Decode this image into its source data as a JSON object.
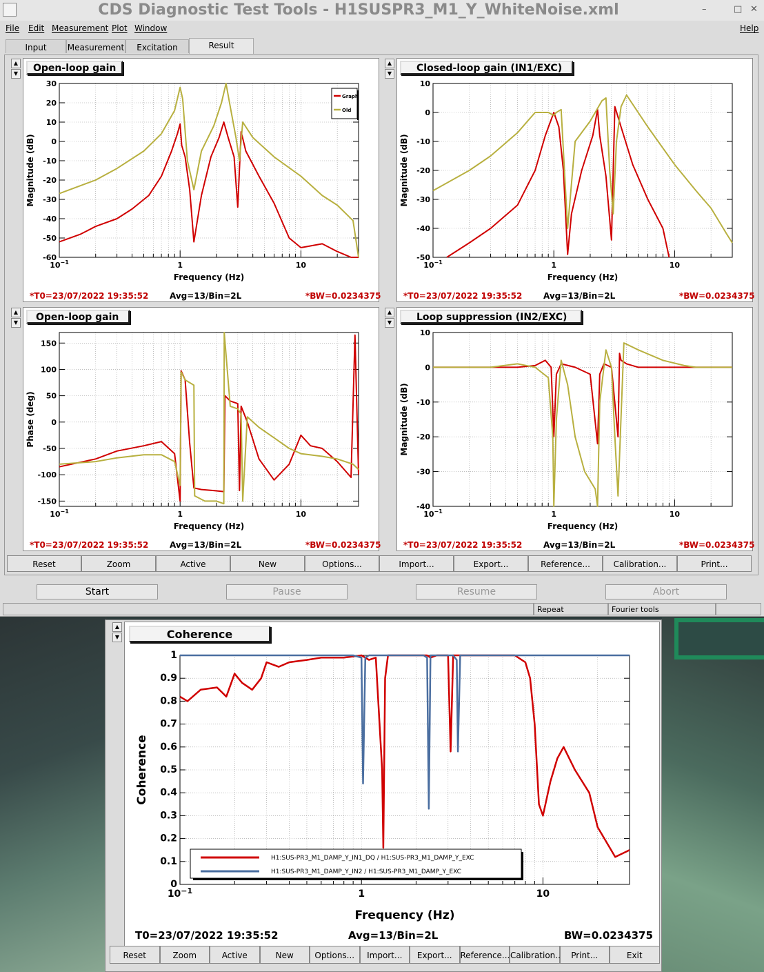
{
  "window": {
    "title": "CDS Diagnostic Test Tools - H1SUSPR3_M1_Y_WhiteNoise.xml",
    "controls": [
      "–",
      "□",
      "✕"
    ]
  },
  "menubar": [
    "File",
    "Edit",
    "Measurement",
    "Plot",
    "Window",
    "Help"
  ],
  "tabs": [
    "Input",
    "Measurement",
    "Excitation",
    "Result"
  ],
  "plot_buttons": [
    "Reset",
    "Zoom",
    "Active",
    "New",
    "Options...",
    "Import...",
    "Export...",
    "Reference...",
    "Calibration...",
    "Print..."
  ],
  "run_controls": {
    "start": "Start",
    "pause": "Pause",
    "resume": "Resume",
    "abort": "Abort"
  },
  "status": {
    "repeat": "Repeat",
    "fourier": "Fourier tools"
  },
  "panel_info": {
    "t0": "*T0=23/07/2022 19:35:52",
    "avg": "Avg=13/Bin=2L",
    "bw": "*BW=0.0234375"
  },
  "panels": [
    {
      "title": "Open-loop gain",
      "xlabel": "Frequency (Hz)",
      "ylabel": "Magnitude (dB)"
    },
    {
      "title": "Closed-loop gain (IN1/EXC)",
      "xlabel": "Frequency (Hz)",
      "ylabel": "Magnitude (dB)"
    },
    {
      "title": "Open-loop gain",
      "xlabel": "Frequency (Hz)",
      "ylabel": "Phase (deg)"
    },
    {
      "title": "Loop suppression (IN2/EXC)",
      "xlabel": "Frequency (Hz)",
      "ylabel": "Magnitude (dB)"
    }
  ],
  "legend_small": [
    "Graph",
    "Old"
  ],
  "coherence": {
    "title": "Coherence",
    "xlabel": "Frequency (Hz)",
    "ylabel": "Coherence",
    "t0": "T0=23/07/2022 19:35:52",
    "avg": "Avg=13/Bin=2L",
    "bw": "BW=0.0234375",
    "legend": [
      "H1:SUS-PR3_M1_DAMP_Y_IN1_DQ / H1:SUS-PR3_M1_DAMP_Y_EXC",
      "H1:SUS-PR3_M1_DAMP_Y_IN2 / H1:SUS-PR3_M1_DAMP_Y_EXC"
    ],
    "buttons": [
      "Reset",
      "Zoom",
      "Active",
      "New",
      "Options...",
      "Import...",
      "Export...",
      "Reference...",
      "Calibration...",
      "Print...",
      "Exit"
    ]
  },
  "colors": {
    "graph": "#d00000",
    "old": "#b8b040",
    "blue": "#4a6ea0"
  },
  "chart_data": [
    {
      "type": "line",
      "xscale": "log",
      "xlim": [
        0.1,
        30
      ],
      "ylim": [
        -60,
        30
      ],
      "yticks": [
        -60,
        -50,
        -40,
        -30,
        -20,
        -10,
        0,
        10,
        20,
        30
      ],
      "series": [
        {
          "name": "Graph",
          "x": [
            0.1,
            0.15,
            0.2,
            0.3,
            0.4,
            0.55,
            0.7,
            0.85,
            0.95,
            1.0,
            1.03,
            1.1,
            1.2,
            1.3,
            1.5,
            1.8,
            2.1,
            2.3,
            2.5,
            2.8,
            3.0,
            3.2,
            3.5,
            4.5,
            6,
            8,
            10,
            15,
            20,
            26,
            30
          ],
          "y": [
            -52,
            -48,
            -44,
            -40,
            -35,
            -28,
            -18,
            -5,
            4,
            9,
            -2,
            -8,
            -25,
            -52,
            -28,
            -8,
            2,
            10,
            2,
            -8,
            -34,
            5,
            -5,
            -18,
            -32,
            -50,
            -55,
            -53,
            -57,
            -60,
            -60
          ]
        },
        {
          "name": "Old",
          "x": [
            0.1,
            0.2,
            0.3,
            0.5,
            0.7,
            0.9,
            1.0,
            1.05,
            1.15,
            1.3,
            1.5,
            1.9,
            2.2,
            2.4,
            2.6,
            2.9,
            3.1,
            3.3,
            4,
            6,
            10,
            15,
            20,
            27,
            30
          ],
          "y": [
            -27,
            -20,
            -14,
            -5,
            4,
            16,
            28,
            22,
            -10,
            -25,
            -5,
            8,
            20,
            31,
            18,
            2,
            -10,
            10,
            2,
            -8,
            -18,
            -28,
            -33,
            -41,
            -60
          ]
        }
      ]
    },
    {
      "type": "line",
      "xscale": "log",
      "xlim": [
        0.1,
        30
      ],
      "ylim": [
        -50,
        10
      ],
      "yticks": [
        -50,
        -40,
        -30,
        -20,
        -10,
        0,
        10
      ],
      "series": [
        {
          "name": "Graph",
          "x": [
            0.13,
            0.2,
            0.3,
            0.5,
            0.7,
            0.85,
            1.0,
            1.1,
            1.2,
            1.3,
            1.4,
            1.7,
            2.1,
            2.3,
            2.4,
            2.7,
            3.0,
            3.2,
            3.6,
            4.5,
            6,
            8,
            9
          ],
          "y": [
            -50,
            -45,
            -40,
            -32,
            -20,
            -8,
            0,
            -5,
            -20,
            -49,
            -35,
            -20,
            -8,
            1,
            -8,
            -22,
            -44,
            2,
            -5,
            -18,
            -30,
            -40,
            -50
          ]
        },
        {
          "name": "Old",
          "x": [
            0.1,
            0.2,
            0.3,
            0.5,
            0.7,
            0.9,
            1.0,
            1.05,
            1.15,
            1.3,
            1.5,
            2.0,
            2.5,
            2.7,
            2.9,
            3.1,
            3.3,
            3.6,
            4,
            6,
            10,
            15,
            20,
            27,
            30
          ],
          "y": [
            -27,
            -20,
            -15,
            -7,
            0,
            0,
            -1,
            0,
            1,
            -40,
            -10,
            -3,
            4,
            5,
            -20,
            -35,
            -10,
            2,
            6,
            -5,
            -18,
            -27,
            -33,
            -42,
            -45
          ]
        }
      ]
    },
    {
      "type": "line",
      "xscale": "log",
      "xlim": [
        0.1,
        30
      ],
      "ylim": [
        -160,
        170
      ],
      "yticks": [
        -150,
        -100,
        -50,
        0,
        50,
        100,
        150
      ],
      "series": [
        {
          "name": "Graph",
          "x": [
            0.1,
            0.2,
            0.3,
            0.5,
            0.7,
            0.9,
            1.0,
            1.02,
            1.1,
            1.2,
            1.3,
            1.5,
            1.9,
            2.3,
            2.35,
            2.6,
            3.0,
            3.1,
            3.2,
            3.6,
            4.5,
            6,
            8,
            10,
            12,
            15,
            20,
            26,
            28,
            30
          ],
          "y": [
            -85,
            -70,
            -55,
            -45,
            -37,
            -60,
            -150,
            97,
            80,
            -40,
            -125,
            -128,
            -130,
            -132,
            50,
            40,
            35,
            -130,
            30,
            0,
            -70,
            -110,
            -80,
            -25,
            -45,
            -50,
            -75,
            -105,
            165,
            -100
          ]
        },
        {
          "name": "Old",
          "x": [
            0.1,
            0.2,
            0.3,
            0.5,
            0.7,
            0.9,
            1.0,
            1.02,
            1.1,
            1.3,
            1.32,
            1.6,
            2.0,
            2.3,
            2.32,
            2.6,
            3.0,
            3.2,
            3.3,
            3.6,
            4.5,
            6,
            8,
            10,
            15,
            20,
            27,
            30
          ],
          "y": [
            -80,
            -75,
            -68,
            -62,
            -62,
            -75,
            -120,
            95,
            80,
            70,
            -140,
            -150,
            -150,
            -155,
            170,
            30,
            25,
            15,
            -150,
            10,
            -10,
            -30,
            -50,
            -60,
            -65,
            -70,
            -80,
            -90
          ]
        }
      ]
    },
    {
      "type": "line",
      "xscale": "log",
      "xlim": [
        0.1,
        30
      ],
      "ylim": [
        -40,
        10
      ],
      "yticks": [
        -40,
        -30,
        -20,
        -10,
        0,
        10
      ],
      "series": [
        {
          "name": "Graph",
          "x": [
            0.1,
            0.3,
            0.5,
            0.7,
            0.85,
            0.95,
            1.0,
            1.05,
            1.15,
            1.5,
            2.0,
            2.3,
            2.4,
            2.6,
            3.0,
            3.4,
            3.5,
            3.6,
            4,
            5,
            8,
            15,
            30
          ],
          "y": [
            0,
            0,
            0,
            0.5,
            2,
            0,
            -20,
            -2,
            1,
            0,
            -2,
            -22,
            -2,
            1,
            0,
            -20,
            4,
            2,
            1,
            0,
            0,
            0,
            0
          ]
        },
        {
          "name": "Old",
          "x": [
            0.1,
            0.3,
            0.5,
            0.7,
            0.9,
            0.98,
            1.0,
            1.05,
            1.15,
            1.3,
            1.5,
            1.8,
            2.2,
            2.3,
            2.4,
            2.7,
            3.0,
            3.2,
            3.4,
            3.8,
            5,
            8,
            12,
            15,
            30
          ],
          "y": [
            0,
            0,
            1,
            0,
            -3,
            -20,
            -40,
            -15,
            2,
            -5,
            -20,
            -30,
            -35,
            -40,
            -10,
            5,
            0,
            -20,
            -37,
            7,
            5,
            2,
            0.5,
            0,
            0
          ]
        }
      ]
    },
    {
      "type": "line",
      "xscale": "log",
      "xlim": [
        0.1,
        30
      ],
      "ylim": [
        0,
        1
      ],
      "yticks": [
        0,
        0.1,
        0.2,
        0.3,
        0.4,
        0.5,
        0.6,
        0.7,
        0.8,
        0.9,
        1
      ],
      "series": [
        {
          "name": "H1:SUS-PR3_M1_DAMP_Y_IN1_DQ / H1:SUS-PR3_M1_DAMP_Y_EXC",
          "x": [
            0.1,
            0.11,
            0.13,
            0.16,
            0.18,
            0.2,
            0.22,
            0.25,
            0.28,
            0.3,
            0.35,
            0.4,
            0.5,
            0.6,
            0.8,
            1.0,
            1.1,
            1.2,
            1.3,
            1.32,
            1.35,
            1.4,
            1.6,
            2.0,
            2.3,
            2.4,
            2.6,
            3.0,
            3.1,
            3.2,
            3.4,
            4,
            5,
            7,
            8,
            8.5,
            9,
            9.5,
            10,
            11,
            12,
            13,
            15,
            18,
            20,
            25,
            30
          ],
          "y": [
            0.82,
            0.8,
            0.85,
            0.86,
            0.82,
            0.92,
            0.88,
            0.85,
            0.9,
            0.97,
            0.95,
            0.97,
            0.98,
            0.99,
            0.99,
            1,
            0.98,
            0.99,
            0.5,
            0.16,
            0.9,
            1,
            1,
            1,
            1,
            0.99,
            1,
            1,
            0.58,
            1,
            1,
            1,
            1,
            1,
            0.97,
            0.9,
            0.7,
            0.35,
            0.3,
            0.45,
            0.55,
            0.6,
            0.5,
            0.4,
            0.25,
            0.12,
            0.15
          ]
        },
        {
          "name": "H1:SUS-PR3_M1_DAMP_Y_IN2 / H1:SUS-PR3_M1_DAMP_Y_EXC",
          "x": [
            0.1,
            0.9,
            1.0,
            1.02,
            1.05,
            1.1,
            2.2,
            2.3,
            2.35,
            2.4,
            3.2,
            3.35,
            3.4,
            3.5,
            30
          ],
          "y": [
            1,
            1,
            0.99,
            0.44,
            0.99,
            1,
            1,
            0.99,
            0.33,
            1,
            1,
            0.98,
            0.58,
            1,
            1
          ]
        }
      ]
    }
  ]
}
